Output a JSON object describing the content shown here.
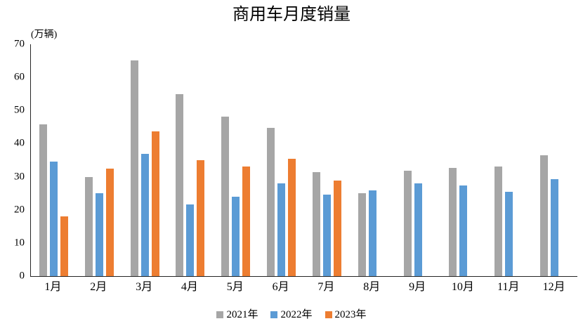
{
  "chart_data": {
    "type": "bar",
    "title": "商用车月度销量",
    "unit_label": "(万辆)",
    "xlabel": "",
    "ylabel": "万辆",
    "ylim": [
      0,
      70
    ],
    "yticks": [
      0,
      10,
      20,
      30,
      40,
      50,
      60,
      70
    ],
    "grid": false,
    "legend_position": "bottom",
    "categories": [
      "1月",
      "2月",
      "3月",
      "4月",
      "5月",
      "6月",
      "7月",
      "8月",
      "9月",
      "10月",
      "11月",
      "12月"
    ],
    "series": [
      {
        "name": "2021年",
        "color": "#A6A6A6",
        "values": [
          45.8,
          29.9,
          65.2,
          54.9,
          48.2,
          44.8,
          31.3,
          25.0,
          31.8,
          32.6,
          33.0,
          36.4
        ]
      },
      {
        "name": "2022年",
        "color": "#5B9BD5",
        "values": [
          34.5,
          25.0,
          37.0,
          21.7,
          24.0,
          28.1,
          24.7,
          25.9,
          27.9,
          27.3,
          25.4,
          29.2
        ]
      },
      {
        "name": "2023年",
        "color": "#ED7D31",
        "values": [
          18.0,
          32.5,
          43.6,
          35.0,
          33.1,
          35.5,
          28.9,
          null,
          null,
          null,
          null,
          null
        ]
      }
    ],
    "axis_color": "#262626",
    "text_color": "#000000"
  }
}
